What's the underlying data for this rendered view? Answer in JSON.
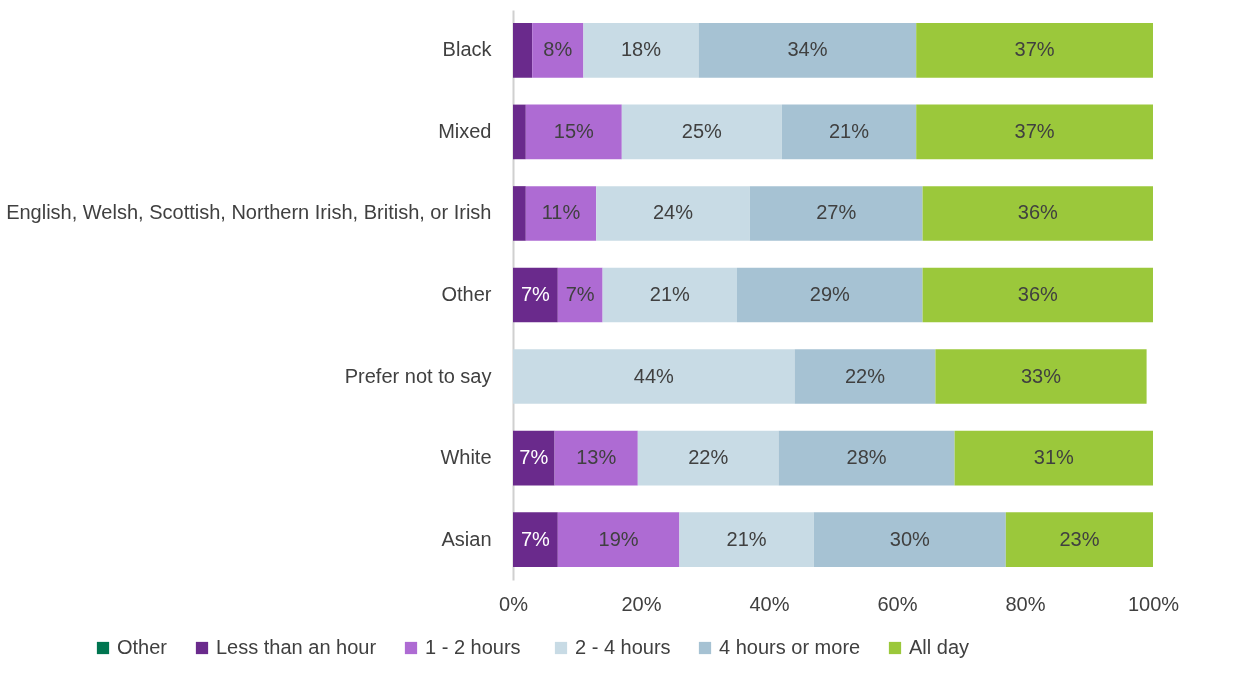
{
  "chart_data": {
    "type": "bar",
    "orientation": "horizontal",
    "stacked": true,
    "categories": [
      "Black",
      "Mixed",
      "English, Welsh, Scottish, Northern Irish, British, or Irish",
      "Other",
      "Prefer not to say",
      "White",
      "Asian"
    ],
    "series": [
      {
        "name": "Other",
        "color": "#007550",
        "values": [
          null,
          null,
          null,
          null,
          null,
          null,
          null
        ]
      },
      {
        "name": "Less than an hour",
        "color": "#6a2a8c",
        "values": [
          3,
          2,
          2,
          7,
          null,
          6.5,
          7
        ],
        "value_labels": [
          null,
          null,
          null,
          "7%",
          null,
          "7%",
          "7%"
        ]
      },
      {
        "name": "1 - 2  hours",
        "color": "#ae6bd3",
        "values": [
          8,
          15,
          11,
          7,
          null,
          13,
          19
        ],
        "value_labels": [
          "8%",
          "15%",
          "11%",
          "7%",
          null,
          "13%",
          "19%"
        ]
      },
      {
        "name": "2 - 4 hours",
        "color": "#c8dbe5",
        "values": [
          18,
          25,
          24,
          21,
          44,
          22,
          21
        ],
        "value_labels": [
          "18%",
          "25%",
          "24%",
          "21%",
          "44%",
          "22%",
          "21%"
        ]
      },
      {
        "name": "4 hours or more",
        "color": "#a6c2d3",
        "values": [
          34,
          21,
          27,
          29,
          22,
          27.5,
          30
        ],
        "value_labels": [
          "34%",
          "21%",
          "27%",
          "29%",
          "22%",
          "28%",
          "30%"
        ]
      },
      {
        "name": "All day",
        "color": "#9bc83b",
        "values": [
          37,
          37,
          36,
          36,
          33,
          31,
          23
        ],
        "value_labels": [
          "37%",
          "37%",
          "36%",
          "36%",
          "33%",
          "31%",
          "23%"
        ]
      }
    ],
    "xlim": [
      0,
      100
    ],
    "xticks": [
      {
        "value": 0,
        "label": "0%"
      },
      {
        "value": 20,
        "label": "20%"
      },
      {
        "value": 40,
        "label": "40%"
      },
      {
        "value": 60,
        "label": "60%"
      },
      {
        "value": 80,
        "label": "80%"
      },
      {
        "value": 100,
        "label": "100%"
      }
    ],
    "legend": "bottom",
    "grid": false
  }
}
